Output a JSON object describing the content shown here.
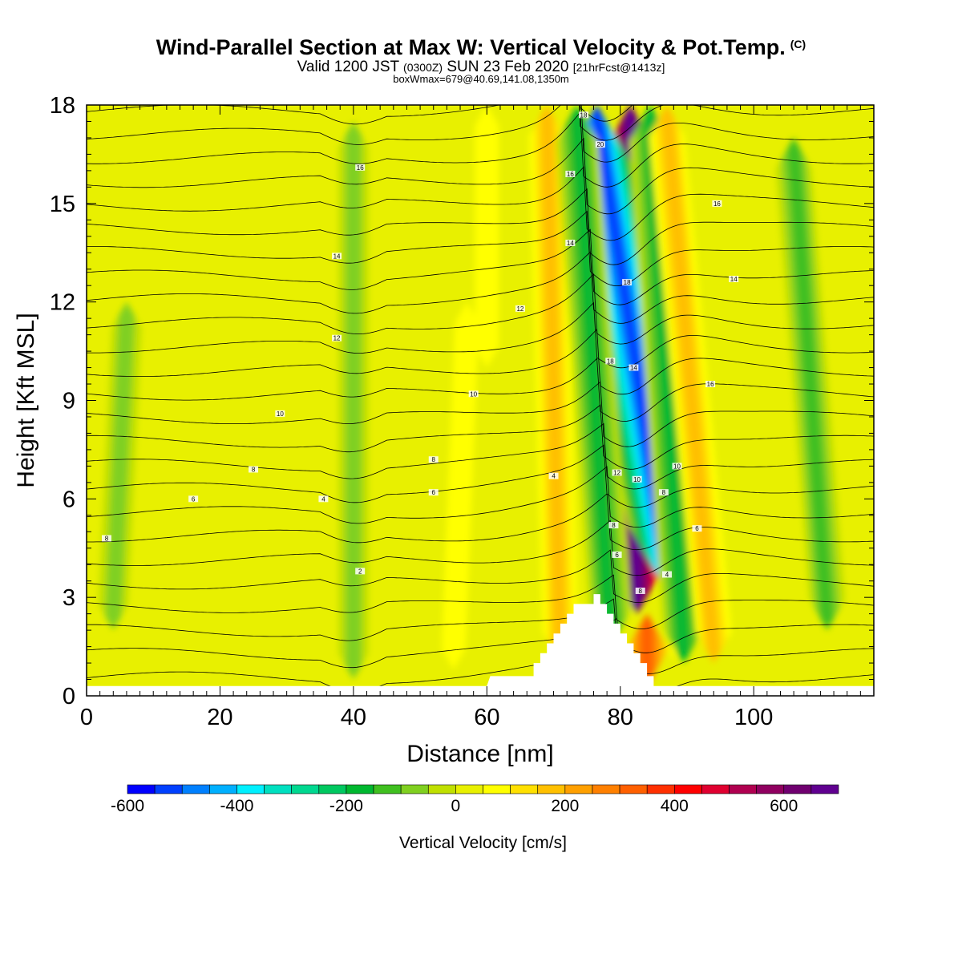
{
  "header": {
    "title": "Wind-Parallel Section at Max W: Vertical Velocity & Pot.Temp.",
    "copyright": "(C)",
    "valid_prefix": "Valid 1200 JST",
    "valid_utc": "(0300Z)",
    "valid_date": "SUN 23 Feb 2020",
    "forecast": "[21hrFcst@1413z]",
    "box_wmax": "boxWmax=679@40.69,141.08,1350m"
  },
  "chart_data": {
    "type": "heatmap",
    "xlabel": "Distance [nm]",
    "ylabel": "Height [Kft MSL]",
    "xlim": [
      0,
      118
    ],
    "ylim": [
      0,
      18
    ],
    "xticks": [
      0,
      20,
      40,
      60,
      80,
      100
    ],
    "yticks": [
      0,
      3,
      6,
      9,
      12,
      15,
      18
    ],
    "colorbar": {
      "label": "Vertical Velocity [cm/s]",
      "min": -600,
      "max": 700,
      "step": 50,
      "tick_labels": [
        -600,
        -400,
        -200,
        0,
        200,
        400,
        600
      ],
      "colors": [
        "#0000ff",
        "#0040ff",
        "#0080ff",
        "#00b0ff",
        "#00f0ff",
        "#00e0c0",
        "#00d890",
        "#00c860",
        "#00b830",
        "#40c020",
        "#80d020",
        "#c0e000",
        "#e8f000",
        "#ffff00",
        "#ffe000",
        "#ffc000",
        "#ffa000",
        "#ff8000",
        "#ff6000",
        "#ff3000",
        "#ff0000",
        "#e00030",
        "#b00050",
        "#900060",
        "#700070",
        "#600090"
      ]
    },
    "background_w": 20,
    "w_features": [
      {
        "x0": 82.5,
        "y0": 2.5,
        "x1": 81.5,
        "y1": 18,
        "w": 679
      },
      {
        "x0": 87.5,
        "y0": 3.0,
        "x1": 76.5,
        "y1": 18,
        "w": -520
      },
      {
        "x0": 84.0,
        "y0": 0.3,
        "x1": 84.0,
        "y1": 2.5,
        "w": 300
      },
      {
        "x0": 71.0,
        "y0": 1.0,
        "x1": 69.0,
        "y1": 18,
        "w": 150
      },
      {
        "x0": 78.5,
        "y0": 1.5,
        "x1": 73.5,
        "y1": 18,
        "w": -200
      },
      {
        "x0": 89.5,
        "y0": 1.0,
        "x1": 84.5,
        "y1": 18,
        "w": -200
      },
      {
        "x0": 94.0,
        "y0": 1.0,
        "x1": 87.0,
        "y1": 18,
        "w": 150
      },
      {
        "x0": 111.0,
        "y0": 2.0,
        "x1": 106.0,
        "y1": 17,
        "w": -150
      },
      {
        "x0": 40.0,
        "y0": 0.5,
        "x1": 40.0,
        "y1": 17.5,
        "w": -60
      },
      {
        "x0": 4.0,
        "y0": 2.0,
        "x1": 6.0,
        "y1": 12,
        "w": -70
      },
      {
        "x0": 55.0,
        "y0": 0.8,
        "x1": 57.0,
        "y1": 12,
        "w": 30
      },
      {
        "x0": 60.0,
        "y0": 10.0,
        "x1": 60.0,
        "y1": 18,
        "w": 80
      }
    ],
    "theta_contour_labels": [
      {
        "text": "2",
        "x": 41.0,
        "y": 3.8
      },
      {
        "text": "4",
        "x": 35.5,
        "y": 6.0
      },
      {
        "text": "4",
        "x": 70.0,
        "y": 6.7
      },
      {
        "text": "6",
        "x": 16.0,
        "y": 6.0
      },
      {
        "text": "6",
        "x": 52.0,
        "y": 6.2
      },
      {
        "text": "8",
        "x": 3.0,
        "y": 4.8
      },
      {
        "text": "8",
        "x": 25.0,
        "y": 6.9
      },
      {
        "text": "8",
        "x": 52.0,
        "y": 7.2
      },
      {
        "text": "10",
        "x": 29.0,
        "y": 8.6
      },
      {
        "text": "10",
        "x": 58.0,
        "y": 9.2
      },
      {
        "text": "12",
        "x": 37.5,
        "y": 10.9
      },
      {
        "text": "12",
        "x": 65.0,
        "y": 11.8
      },
      {
        "text": "14",
        "x": 37.5,
        "y": 13.4
      },
      {
        "text": "14",
        "x": 72.5,
        "y": 13.8
      },
      {
        "text": "14",
        "x": 97.0,
        "y": 12.7
      },
      {
        "text": "16",
        "x": 41.0,
        "y": 16.1
      },
      {
        "text": "16",
        "x": 72.5,
        "y": 15.9
      },
      {
        "text": "16",
        "x": 94.5,
        "y": 15.0
      },
      {
        "text": "16",
        "x": 93.5,
        "y": 9.5
      },
      {
        "text": "18",
        "x": 74.5,
        "y": 17.7
      },
      {
        "text": "18",
        "x": 81.0,
        "y": 12.6
      },
      {
        "text": "18",
        "x": 78.5,
        "y": 10.2
      },
      {
        "text": "14",
        "x": 82.0,
        "y": 10.0
      },
      {
        "text": "20",
        "x": 77.0,
        "y": 16.8
      },
      {
        "text": "12",
        "x": 79.5,
        "y": 6.8
      },
      {
        "text": "10",
        "x": 82.5,
        "y": 6.6
      },
      {
        "text": "10",
        "x": 88.5,
        "y": 7.0
      },
      {
        "text": "8",
        "x": 79.0,
        "y": 5.2
      },
      {
        "text": "8",
        "x": 86.5,
        "y": 6.2
      },
      {
        "text": "6",
        "x": 91.5,
        "y": 5.1
      },
      {
        "text": "6",
        "x": 79.5,
        "y": 4.3
      },
      {
        "text": "4",
        "x": 87.0,
        "y": 3.7
      },
      {
        "text": "8",
        "x": 83.0,
        "y": 3.2
      }
    ],
    "terrain": [
      [
        0,
        0.3
      ],
      [
        60,
        0.3
      ],
      [
        60.5,
        0.6
      ],
      [
        67,
        0.6
      ],
      [
        67,
        1.0
      ],
      [
        68,
        1.0
      ],
      [
        68,
        1.3
      ],
      [
        69,
        1.3
      ],
      [
        69,
        1.6
      ],
      [
        70,
        1.6
      ],
      [
        70,
        1.9
      ],
      [
        71,
        1.9
      ],
      [
        71,
        2.2
      ],
      [
        72,
        2.2
      ],
      [
        72,
        2.5
      ],
      [
        73,
        2.5
      ],
      [
        73,
        2.8
      ],
      [
        76,
        2.8
      ],
      [
        76,
        3.1
      ],
      [
        77,
        3.1
      ],
      [
        77,
        2.8
      ],
      [
        78,
        2.8
      ],
      [
        78,
        2.5
      ],
      [
        79,
        2.5
      ],
      [
        79,
        2.2
      ],
      [
        80,
        2.2
      ],
      [
        80,
        1.9
      ],
      [
        81,
        1.9
      ],
      [
        81,
        1.6
      ],
      [
        82,
        1.6
      ],
      [
        82,
        1.3
      ],
      [
        83,
        1.3
      ],
      [
        83,
        1.0
      ],
      [
        84,
        1.0
      ],
      [
        84,
        0.6
      ],
      [
        85,
        0.6
      ],
      [
        85,
        0.3
      ],
      [
        118,
        0.3
      ],
      [
        118,
        0
      ]
    ]
  }
}
